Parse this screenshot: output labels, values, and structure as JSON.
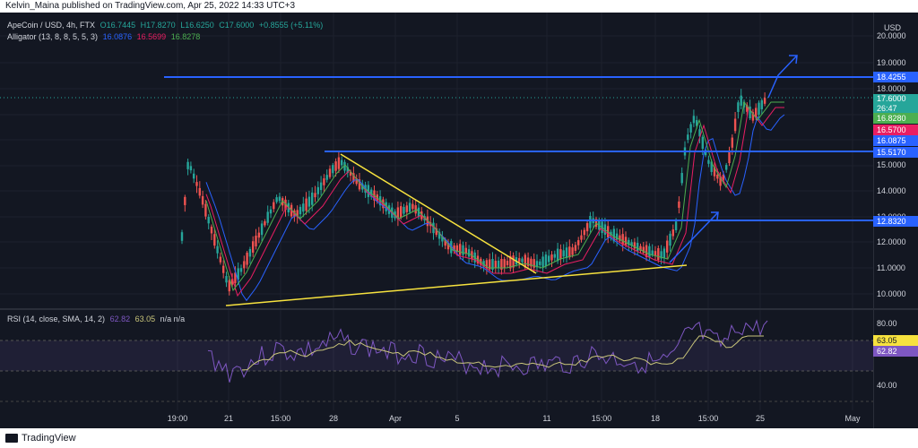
{
  "header": {
    "publish_line": "Kelvin_Maina published on TradingView.com, Apr 25, 2022 14:33 UTC+3"
  },
  "legend": {
    "symbol": "ApeCoin / USD, 4h, FTX",
    "o": "O16.7445",
    "h": "H17.8270",
    "l": "L16.6250",
    "c": "C17.6000",
    "change": "+0.8555 (+5.11%)",
    "alligator_label": "Alligator (13, 8, 8, 5, 5, 3)",
    "alligator_jaw": "16.0876",
    "alligator_teeth": "16.5699",
    "alligator_lips": "16.8278",
    "rsi_label": "RSI (14, close, SMA, 14, 2)",
    "rsi_value": "62.82",
    "rsi_ma": "63.05",
    "rsi_na": "n/a n/a"
  },
  "axis": {
    "currency": "USD",
    "price_ticks": [
      "20.0000",
      "19.0000",
      "18.0000",
      "15.0000",
      "14.0000",
      "13.0000",
      "12.0000",
      "11.0000",
      "10.0000"
    ],
    "rsi_ticks": [
      "80.00",
      "40.00"
    ],
    "time_ticks": [
      "19:00",
      "21",
      "15:00",
      "28",
      "Apr",
      "5",
      "11",
      "15:00",
      "18",
      "15:00",
      "25",
      "May"
    ]
  },
  "price_tags": {
    "level_high": "18.4255",
    "last_price": "17.6000",
    "countdown": "26:47",
    "lips": "16.8280",
    "teeth": "16.5700",
    "jaw": "16.0875",
    "level_mid": "15.5170",
    "level_low": "12.8320",
    "rsi_ma_tag": "63.05",
    "rsi_tag": "62.82"
  },
  "colors": {
    "background": "#131722",
    "up": "#26a69a",
    "down": "#ef5350",
    "level_line": "#2962ff",
    "trend_line": "#f7e23e",
    "jaw": "#2962ff",
    "teeth": "#e91e63",
    "lips": "#4caf50",
    "rsi": "#7e57c2"
  },
  "footer": {
    "brand": "TradingView"
  }
}
